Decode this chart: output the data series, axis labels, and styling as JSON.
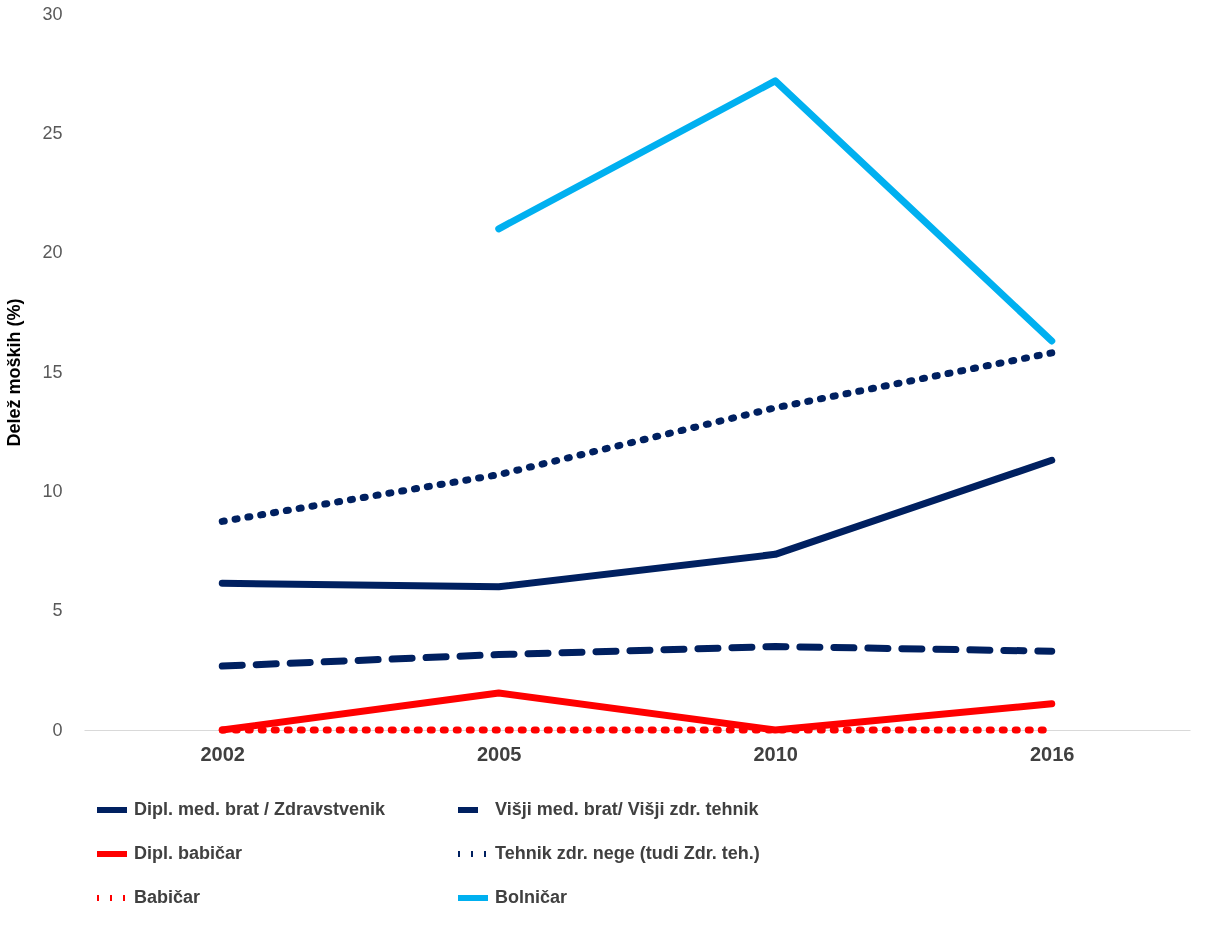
{
  "chart_data": {
    "type": "line",
    "ylabel": "Delež moških (%)",
    "categories": [
      "2002",
      "2005",
      "2010",
      "2016"
    ],
    "ylim": [
      0,
      30
    ],
    "yticks": [
      0,
      5,
      10,
      15,
      20,
      25,
      30
    ],
    "grid": false,
    "legend": "bottom",
    "marker": "none",
    "series": [
      {
        "name": "Dipl. med. brat / Zdravstvenik",
        "color": "#002060",
        "line_style": "solid",
        "values": [
          6.15,
          6.0,
          7.36,
          11.3
        ]
      },
      {
        "name": "Višji med. brat/ Višji zdr. tehnik",
        "color": "#002060",
        "line_style": "dashed",
        "values": [
          2.68,
          3.16,
          3.5,
          3.3
        ]
      },
      {
        "name": "Dipl. babičar",
        "color": "#ff0000",
        "line_style": "solid",
        "values": [
          0,
          1.55,
          0,
          1.1
        ]
      },
      {
        "name": "Tehnik zdr. nege (tudi Zdr. teh.)",
        "color": "#002060",
        "line_style": "dotted",
        "values": [
          8.74,
          10.7,
          13.5,
          15.8
        ]
      },
      {
        "name": "Babičar",
        "color": "#ff0000",
        "line_style": "dotted",
        "values": [
          0,
          0,
          0,
          0
        ]
      },
      {
        "name": "Bolničar",
        "color": "#00b0f0",
        "line_style": "solid",
        "values": [
          null,
          21.0,
          27.2,
          16.3
        ]
      }
    ]
  }
}
